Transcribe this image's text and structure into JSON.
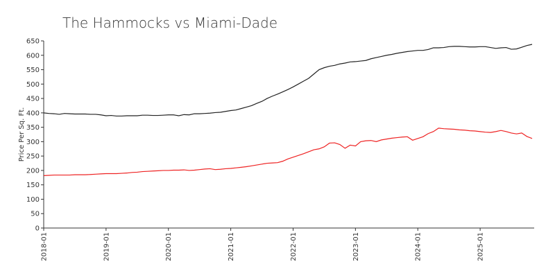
{
  "chart_data": {
    "type": "line",
    "title": "The Hammocks vs Miami-Dade",
    "ylabel": "Price Per Sq. Ft.",
    "categories": [
      "2018-01",
      null,
      null,
      null,
      null,
      null,
      null,
      null,
      null,
      null,
      null,
      null,
      "2019-01",
      null,
      null,
      null,
      null,
      null,
      null,
      null,
      null,
      null,
      null,
      null,
      "2020-01",
      null,
      null,
      null,
      null,
      null,
      null,
      null,
      null,
      null,
      null,
      null,
      "2021-01",
      null,
      null,
      null,
      null,
      null,
      null,
      null,
      null,
      null,
      null,
      null,
      "2022-01",
      null,
      null,
      null,
      null,
      null,
      null,
      null,
      null,
      null,
      null,
      null,
      "2023-01",
      null,
      null,
      null,
      null,
      null,
      null,
      null,
      null,
      null,
      null,
      null,
      "2024-01",
      null,
      null,
      null,
      null,
      null,
      null,
      null,
      null,
      null,
      null,
      null,
      "2025-01",
      null,
      null,
      null,
      null,
      null,
      null,
      null,
      null,
      null,
      null
    ],
    "series": [
      {
        "color": "#222222",
        "values": [
          400,
          398,
          397,
          395,
          398,
          397,
          396,
          396,
          396,
          395,
          395,
          393,
          390,
          391,
          389,
          389,
          390,
          390,
          390,
          392,
          392,
          391,
          391,
          392,
          393,
          393,
          390,
          394,
          393,
          397,
          397,
          398,
          399,
          401,
          402,
          405,
          408,
          410,
          415,
          420,
          425,
          433,
          440,
          450,
          458,
          465,
          473,
          481,
          490,
          500,
          510,
          520,
          535,
          550,
          557,
          562,
          565,
          570,
          573,
          577,
          578,
          580,
          582,
          588,
          592,
          596,
          600,
          603,
          607,
          610,
          613,
          615,
          617,
          617,
          620,
          626,
          626,
          627,
          630,
          631,
          631,
          630,
          629,
          629,
          630,
          630,
          627,
          624,
          626,
          627,
          621,
          622,
          628,
          634,
          638
        ]
      },
      {
        "color": "#ee2222",
        "values": [
          182,
          183,
          184,
          184,
          184,
          184,
          185,
          185,
          185,
          186,
          187,
          188,
          189,
          189,
          189,
          190,
          191,
          193,
          194,
          196,
          197,
          198,
          199,
          200,
          200,
          201,
          201,
          202,
          200,
          201,
          203,
          205,
          206,
          203,
          204,
          206,
          207,
          209,
          211,
          213,
          216,
          219,
          222,
          225,
          226,
          227,
          232,
          240,
          246,
          252,
          258,
          265,
          272,
          275,
          282,
          295,
          296,
          290,
          277,
          288,
          285,
          300,
          303,
          304,
          300,
          306,
          309,
          312,
          314,
          316,
          317,
          305,
          311,
          317,
          328,
          335,
          347,
          345,
          344,
          343,
          341,
          340,
          338,
          337,
          335,
          333,
          332,
          335,
          339,
          335,
          330,
          327,
          330,
          318,
          311
        ]
      }
    ],
    "ylim": [
      0,
      650
    ],
    "yticks": [
      0,
      50,
      100,
      150,
      200,
      250,
      300,
      350,
      400,
      450,
      500,
      550,
      600,
      650
    ]
  }
}
